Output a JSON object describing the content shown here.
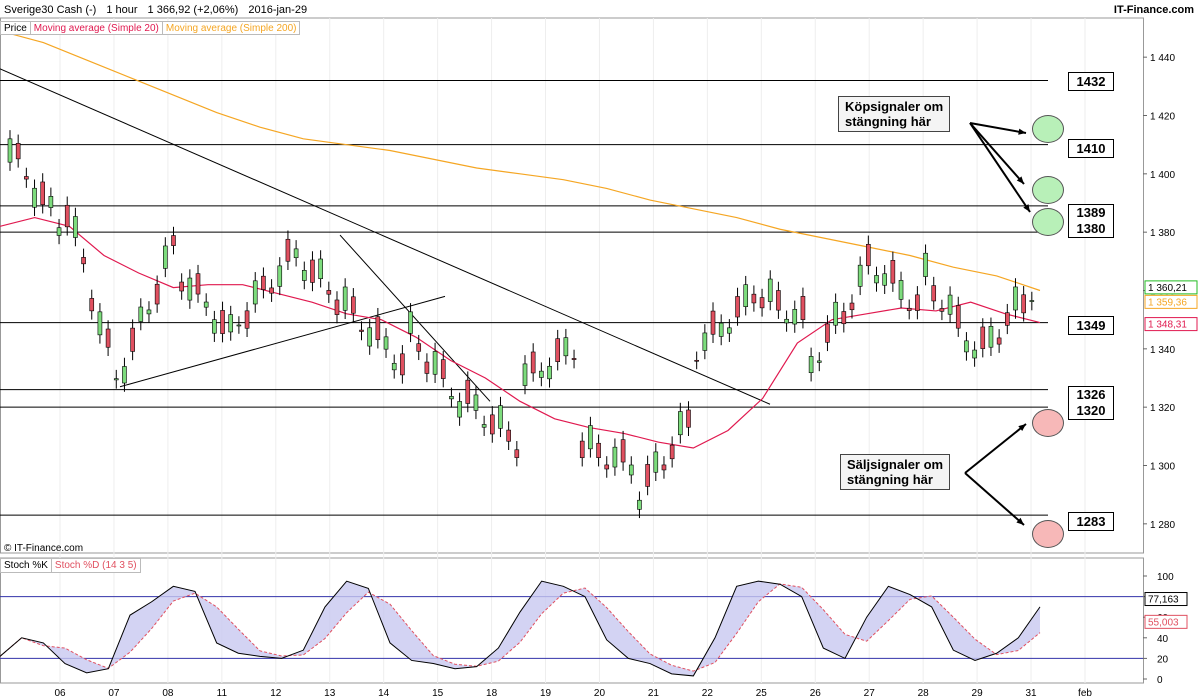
{
  "header": {
    "symbol": "Sverige30 Cash (-)",
    "interval": "1 hour",
    "last": "1 366,92 (+2,06%)",
    "date": "2016-jan-29",
    "brand": "IT-Finance.com"
  },
  "legend": {
    "price": "Price",
    "ma20": "Moving average (Simple 20)",
    "ma200": "Moving average (Simple 200)",
    "colors": {
      "ma20": "#e0194f",
      "ma200": "#f5a623",
      "ma_green": "#22bb22",
      "up": "#7ddc7d",
      "down": "#e05060"
    }
  },
  "copyright": "© IT-Finance.com",
  "stoch_legend": {
    "k": "Stoch %K",
    "d": "Stoch %D (14 3 5)"
  },
  "level_labels": {
    "l1432": "1432",
    "l1410": "1410",
    "l1389": "1389",
    "l1380": "1380",
    "l1349": "1349",
    "l1326": "1326",
    "l1320": "1320",
    "l1283": "1283"
  },
  "annotations": {
    "buy": "Köpsignaler om\nstängning här",
    "sell": "Säljsignaler om\nstängning här"
  },
  "chart_data": {
    "type": "candlestick",
    "price_axis": {
      "ylim": [
        1270,
        1450
      ],
      "ticks": [
        1280,
        1300,
        1320,
        1340,
        1360,
        1380,
        1400,
        1420,
        1440
      ],
      "tick_labels": [
        "1 280",
        "1 300",
        "1 320",
        "1 340",
        "1 360",
        "1 380",
        "1 400",
        "1 420",
        "1 440"
      ]
    },
    "current_value_tags": [
      {
        "label": "1 360,21",
        "value": 1360.21,
        "color": "#22bb22"
      },
      {
        "label": "1 359,36",
        "value": 1359.36,
        "color": "#f5a623"
      },
      {
        "label": "1 348,31",
        "value": 1348.31,
        "color": "#e0194f"
      }
    ],
    "x_labels": [
      "06",
      "07",
      "08",
      "11",
      "12",
      "13",
      "14",
      "15",
      "18",
      "19",
      "20",
      "21",
      "22",
      "25",
      "26",
      "27",
      "28",
      "29",
      "31",
      "feb"
    ],
    "horizontal_levels": [
      1432,
      1410,
      1389,
      1380,
      1349,
      1326,
      1320,
      1283
    ],
    "stoch_axis": {
      "ylim": [
        0,
        100
      ],
      "ticks": [
        0,
        20,
        40,
        60,
        80,
        100
      ],
      "tick_labels": [
        "0",
        "20",
        "40",
        "60",
        "80",
        "100"
      ],
      "bands": [
        20,
        80
      ],
      "k_tag": "77,163",
      "d_tag": "55,003"
    },
    "sessions": [
      {
        "label": "06",
        "o": 1408,
        "c": 1383,
        "h": 1410,
        "l": 1382,
        "lo2": 1375
      },
      {
        "label": "07",
        "o": 1388,
        "c": 1330,
        "h": 1386,
        "l": 1327,
        "lo2": 1326
      },
      {
        "label": "08",
        "o": 1335,
        "c": 1375,
        "h": 1380,
        "l": 1327,
        "lo2": 1348
      },
      {
        "label": "11",
        "o": 1365,
        "c": 1345,
        "h": 1368,
        "l": 1340,
        "lo2": 1340
      },
      {
        "label": "12",
        "o": 1350,
        "c": 1370,
        "h": 1372,
        "l": 1346,
        "lo2": 1346
      },
      {
        "label": "13",
        "o": 1372,
        "c": 1355,
        "h": 1377,
        "l": 1350,
        "lo2": 1350
      },
      {
        "label": "14",
        "o": 1352,
        "c": 1335,
        "h": 1356,
        "l": 1328,
        "lo2": 1332
      },
      {
        "label": "15",
        "o": 1345,
        "c": 1322,
        "h": 1348,
        "l": 1318,
        "lo2": 1318
      },
      {
        "label": "18",
        "o": 1322,
        "c": 1308,
        "h": 1325,
        "l": 1297,
        "lo2": 1303
      },
      {
        "label": "19",
        "o": 1330,
        "c": 1340,
        "h": 1343,
        "l": 1326,
        "lo2": 1330
      },
      {
        "label": "20",
        "o": 1307,
        "c": 1300,
        "h": 1310,
        "l": 1296,
        "lo2": 1297
      },
      {
        "label": "21",
        "o": 1290,
        "c": 1315,
        "h": 1320,
        "l": 1286,
        "lo2": 1295
      },
      {
        "label": "22",
        "o": 1340,
        "c": 1355,
        "h": 1362,
        "l": 1337,
        "lo2": 1345
      },
      {
        "label": "25",
        "o": 1360,
        "c": 1350,
        "h": 1368,
        "l": 1345,
        "lo2": 1345
      },
      {
        "label": "26",
        "o": 1335,
        "c": 1362,
        "h": 1366,
        "l": 1332,
        "lo2": 1340
      },
      {
        "label": "27",
        "o": 1370,
        "c": 1355,
        "h": 1377,
        "l": 1350,
        "lo2": 1352
      },
      {
        "label": "28",
        "o": 1365,
        "c": 1340,
        "h": 1370,
        "l": 1333,
        "lo2": 1335
      },
      {
        "label": "29",
        "o": 1340,
        "c": 1360,
        "h": 1362,
        "l": 1330,
        "lo2": 1337
      }
    ],
    "ma20": [
      1382,
      1385,
      1382,
      1372,
      1366,
      1361,
      1362,
      1362,
      1359,
      1356,
      1352,
      1350,
      1344,
      1336,
      1330,
      1322,
      1316,
      1313,
      1311,
      1308,
      1306,
      1312,
      1323,
      1342,
      1350,
      1352,
      1354,
      1353,
      1356,
      1352,
      1349
    ],
    "ma200": [
      1449,
      1445,
      1439,
      1433,
      1427,
      1421,
      1416,
      1412,
      1410,
      1408,
      1405,
      1402,
      1400,
      1398,
      1395,
      1391,
      1388,
      1385,
      1381,
      1378,
      1375,
      1372,
      1368,
      1365,
      1360
    ],
    "stoch_k": [
      22,
      40,
      35,
      15,
      6,
      10,
      62,
      75,
      90,
      85,
      35,
      25,
      22,
      20,
      28,
      70,
      95,
      88,
      35,
      18,
      15,
      10,
      12,
      30,
      65,
      95,
      90,
      80,
      38,
      20,
      15,
      5,
      3,
      40,
      90,
      95,
      92,
      80,
      30,
      20,
      60,
      90,
      82,
      70,
      28,
      18,
      25,
      40,
      70
    ]
  }
}
